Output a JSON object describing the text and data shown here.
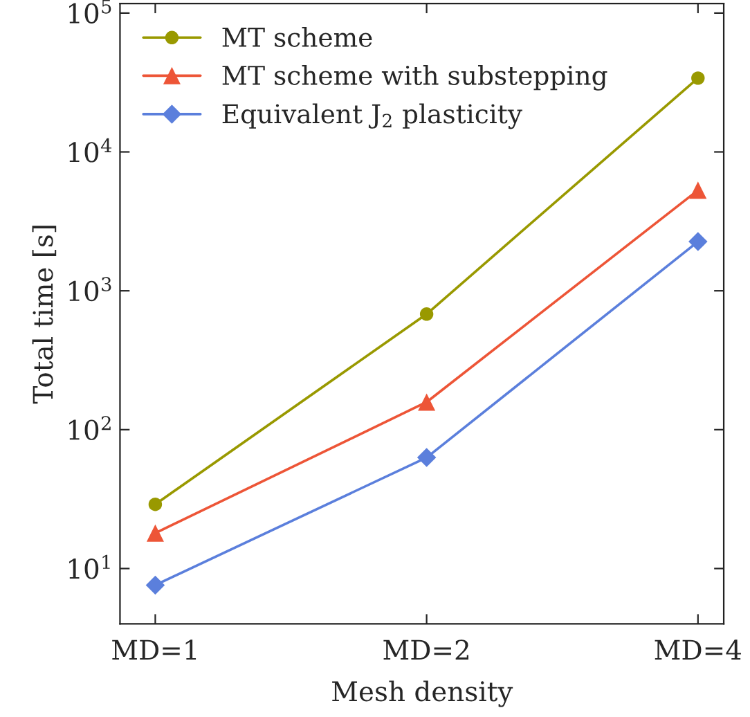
{
  "chart_data": {
    "type": "line",
    "xlabel": "Mesh density",
    "ylabel": "Total time [s]",
    "categories": [
      "MD=1",
      "MD=2",
      "MD=4"
    ],
    "series": [
      {
        "name": "MT scheme",
        "color": "#999900",
        "marker": "circle",
        "values": [
          29,
          680,
          34000
        ]
      },
      {
        "name": "MT scheme with substepping",
        "color": "#ed5537",
        "marker": "triangle",
        "values": [
          18,
          158,
          5300
        ]
      },
      {
        "name": "Equivalent J$_{2}$ plasticity",
        "color": "#5b7fdc",
        "marker": "diamond",
        "values": [
          7.6,
          63,
          2260
        ]
      }
    ],
    "log": "y",
    "ylim": [
      4,
      117000
    ],
    "yticks": [
      {
        "value": 10,
        "label": "10$^{1}$"
      },
      {
        "value": 100,
        "label": "10$^{2}$"
      },
      {
        "value": 1000,
        "label": "10$^{3}$"
      },
      {
        "value": 10000,
        "label": "10$^{4}$"
      },
      {
        "value": 100000,
        "label": "10$^{5}$"
      }
    ],
    "grid": false,
    "legend": "top left"
  }
}
